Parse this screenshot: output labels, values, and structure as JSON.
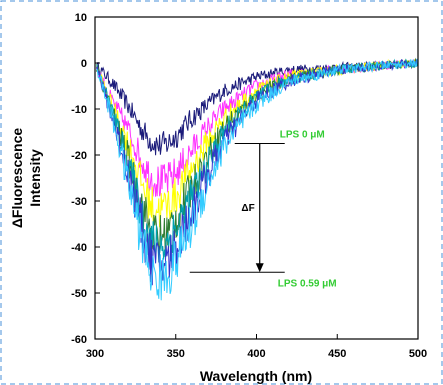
{
  "chart_data": {
    "type": "line",
    "xlabel": "Wavelength (nm)",
    "ylabel": [
      "ΔFluorescence",
      "Intensity"
    ],
    "xlim": [
      300,
      500
    ],
    "ylim": [
      -60,
      10
    ],
    "xticks": [
      300,
      350,
      400,
      450,
      500
    ],
    "yticks": [
      10,
      0,
      -10,
      -20,
      -30,
      -40,
      -50,
      -60
    ],
    "grid": false,
    "legend": "none",
    "series": [
      {
        "color": "#1b1b7a",
        "x": [
          300,
          310,
          320,
          330,
          335,
          340,
          345,
          350,
          360,
          370,
          380,
          400,
          420,
          450,
          480,
          500
        ],
        "y": [
          0,
          -4,
          -9,
          -15,
          -17,
          -18,
          -17.5,
          -16,
          -12,
          -9,
          -6,
          -3,
          -1.5,
          -1,
          -0.5,
          0
        ]
      },
      {
        "color": "#ff33ff",
        "x": [
          300,
          310,
          320,
          330,
          335,
          340,
          345,
          350,
          360,
          370,
          380,
          400,
          420,
          450,
          480,
          500
        ],
        "y": [
          0,
          -8,
          -14,
          -22,
          -25,
          -26,
          -25.5,
          -24,
          -19,
          -14,
          -10,
          -5,
          -2.5,
          -1.5,
          -0.5,
          0
        ]
      },
      {
        "color": "#ffff00",
        "x": [
          300,
          310,
          320,
          330,
          335,
          340,
          345,
          350,
          360,
          370,
          380,
          400,
          420,
          450,
          480,
          500
        ],
        "y": [
          0,
          -9,
          -17,
          -27,
          -31,
          -32,
          -31,
          -29,
          -23,
          -17,
          -12,
          -6,
          -3,
          -1.5,
          -0.5,
          0
        ]
      },
      {
        "color": "#2e7d32",
        "x": [
          300,
          310,
          320,
          330,
          335,
          340,
          345,
          350,
          360,
          370,
          380,
          400,
          420,
          450,
          480,
          500
        ],
        "y": [
          0,
          -10,
          -20,
          -32,
          -37,
          -38,
          -37,
          -34,
          -27,
          -20,
          -14,
          -7,
          -3.5,
          -1.5,
          -0.5,
          0
        ]
      },
      {
        "color": "#00a0b0",
        "x": [
          300,
          310,
          320,
          330,
          335,
          340,
          345,
          350,
          360,
          370,
          380,
          400,
          420,
          450,
          480,
          500
        ],
        "y": [
          0,
          -10,
          -21,
          -34,
          -39,
          -40,
          -39,
          -36,
          -29,
          -22,
          -15,
          -7.5,
          -3.5,
          -1.5,
          -0.5,
          0
        ]
      },
      {
        "color": "#3333cc",
        "x": [
          300,
          310,
          320,
          330,
          335,
          340,
          345,
          350,
          360,
          370,
          380,
          400,
          420,
          450,
          480,
          500
        ],
        "y": [
          0,
          -11,
          -23,
          -37,
          -43,
          -44,
          -43,
          -40,
          -32,
          -24,
          -17,
          -8,
          -4,
          -1.5,
          -0.5,
          0
        ]
      },
      {
        "color": "#33ccff",
        "x": [
          300,
          310,
          320,
          330,
          335,
          340,
          345,
          350,
          360,
          370,
          380,
          400,
          420,
          450,
          480,
          500
        ],
        "y": [
          0,
          -11,
          -25,
          -40,
          -46,
          -47,
          -46,
          -43,
          -35,
          -26,
          -18,
          -9,
          -4,
          -1.5,
          -0.5,
          0
        ]
      }
    ],
    "annotations": {
      "top_label": "LPS 0 μM",
      "bottom_label": "LPS 0.59 μM",
      "delta_label": "ΔF",
      "label_color": "#33cc33",
      "arrow_from_y": -17.5,
      "arrow_to_y": -45.5,
      "arrow_x": 402
    }
  }
}
